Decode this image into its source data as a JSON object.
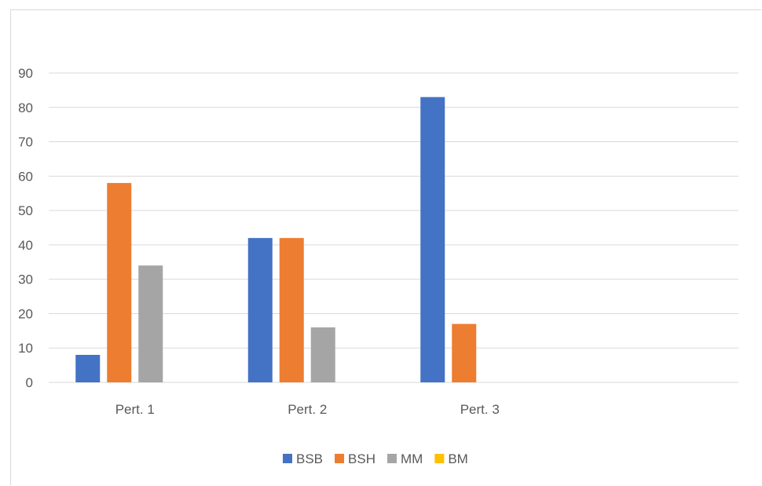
{
  "chart_data": {
    "type": "bar",
    "title": "",
    "xlabel": "",
    "ylabel": "",
    "categories": [
      "Pert. 1",
      "Pert. 2",
      "Pert. 3",
      ""
    ],
    "series": [
      {
        "name": "BSB",
        "color": "#4472C4",
        "values": [
          8,
          42,
          83,
          0
        ]
      },
      {
        "name": "BSH",
        "color": "#ED7D31",
        "values": [
          58,
          42,
          17,
          0
        ]
      },
      {
        "name": "MM",
        "color": "#A5A5A5",
        "values": [
          34,
          16,
          0,
          0
        ]
      },
      {
        "name": "BM",
        "color": "#FFC000",
        "values": [
          0,
          0,
          0,
          0
        ]
      }
    ],
    "ylim": [
      0,
      90
    ],
    "yticks": [
      "0",
      "10",
      "20",
      "30",
      "40",
      "50",
      "60",
      "70",
      "80",
      "90"
    ],
    "grid": true,
    "legend": "bottom"
  }
}
